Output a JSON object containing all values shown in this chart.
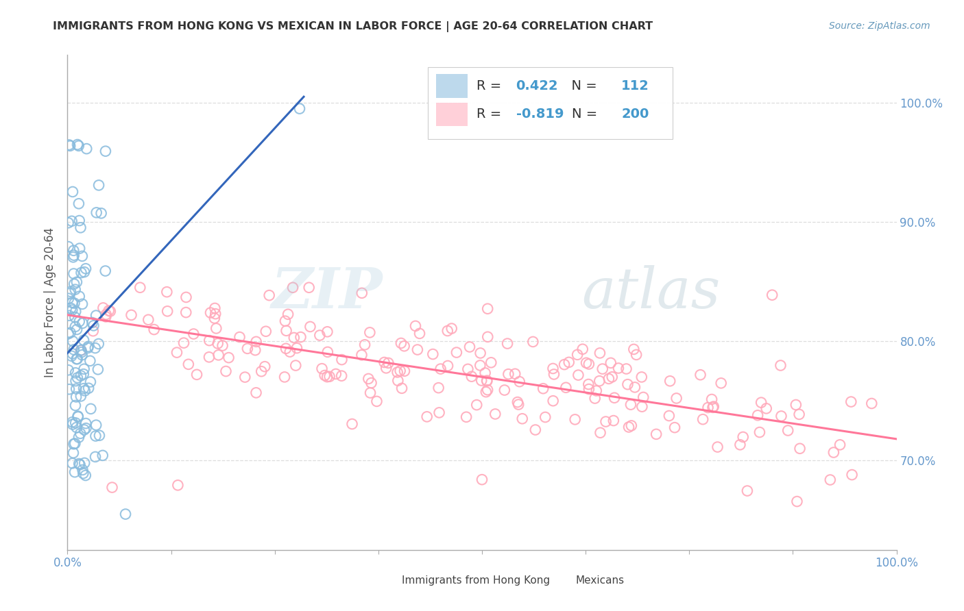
{
  "title": "IMMIGRANTS FROM HONG KONG VS MEXICAN IN LABOR FORCE | AGE 20-64 CORRELATION CHART",
  "source": "Source: ZipAtlas.com",
  "ylabel": "In Labor Force | Age 20-64",
  "xlim": [
    0.0,
    1.0
  ],
  "ylim": [
    0.625,
    1.04
  ],
  "yticks": [
    0.7,
    0.8,
    0.9,
    1.0
  ],
  "ytick_labels": [
    "70.0%",
    "80.0%",
    "90.0%",
    "100.0%"
  ],
  "xticks": [
    0.0,
    0.125,
    0.25,
    0.375,
    0.5,
    0.625,
    0.75,
    0.875,
    1.0
  ],
  "xtick_labels": [
    "0.0%",
    "",
    "",
    "",
    "",
    "",
    "",
    "",
    "100.0%"
  ],
  "hk_R": 0.422,
  "hk_N": 112,
  "mex_R": -0.819,
  "mex_N": 200,
  "hk_color": "#88bbdd",
  "mex_color": "#ffaabb",
  "hk_line_color": "#3366bb",
  "mex_line_color": "#ff7799",
  "background_color": "#ffffff",
  "grid_color": "#dddddd",
  "legend_label_hk": "Immigrants from Hong Kong",
  "legend_label_mex": "Mexicans",
  "legend_R_N_color": "#4499cc",
  "title_color": "#333333",
  "source_color": "#6699bb",
  "ylabel_color": "#555555",
  "tick_label_color": "#6699cc"
}
